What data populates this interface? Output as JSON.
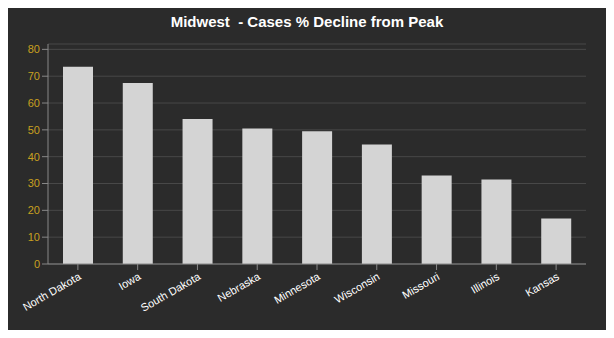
{
  "chart_data": {
    "type": "bar",
    "title": "Midwest  - Cases % Decline from Peak",
    "categories": [
      "North Dakota",
      "Iowa",
      "South Dakota",
      "Nebraska",
      "Minnesota",
      "Wisconsin",
      "Missouri",
      "Illinois",
      "Kansas"
    ],
    "values": [
      73.5,
      67.5,
      54.0,
      50.5,
      49.5,
      44.5,
      33.0,
      31.5,
      17.0
    ],
    "color": "#d4d4d4",
    "ylim": [
      0,
      82
    ],
    "yticks": [
      0,
      10,
      20,
      30,
      40,
      50,
      60,
      70,
      80
    ],
    "grid": true
  }
}
